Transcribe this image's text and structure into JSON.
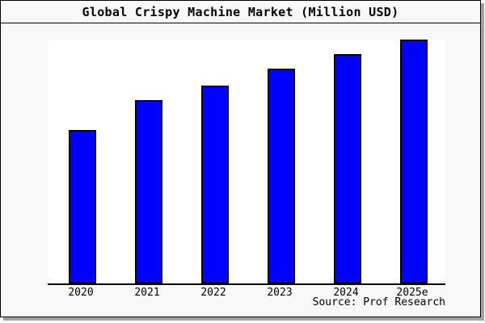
{
  "title": "Global Crispy Machine Market (Million USD)",
  "source": "Source: Prof Research",
  "colors": {
    "figure_background": "#f8f8f8",
    "plot_background": "#ffffff",
    "bar_fill": "#0000ff",
    "bar_border": "#000000",
    "frame_border": "#000000",
    "shadow": "#a3a3a3",
    "text": "#000000"
  },
  "chart_data": {
    "type": "bar",
    "title": "Global Crispy Machine Market (Million USD)",
    "categories": [
      "2020",
      "2021",
      "2022",
      "2023",
      "2024",
      "2025e"
    ],
    "values": [
      63,
      75,
      81,
      88,
      94,
      100
    ],
    "xlabel": "",
    "ylabel": "",
    "ylim": [
      0,
      100
    ],
    "grid": false,
    "legend": false,
    "y_axis_labels_visible": false,
    "note": "Y-axis is unlabeled in the image; values are relative bar heights with 2025e = 100.",
    "source": "Source: Prof Research"
  }
}
